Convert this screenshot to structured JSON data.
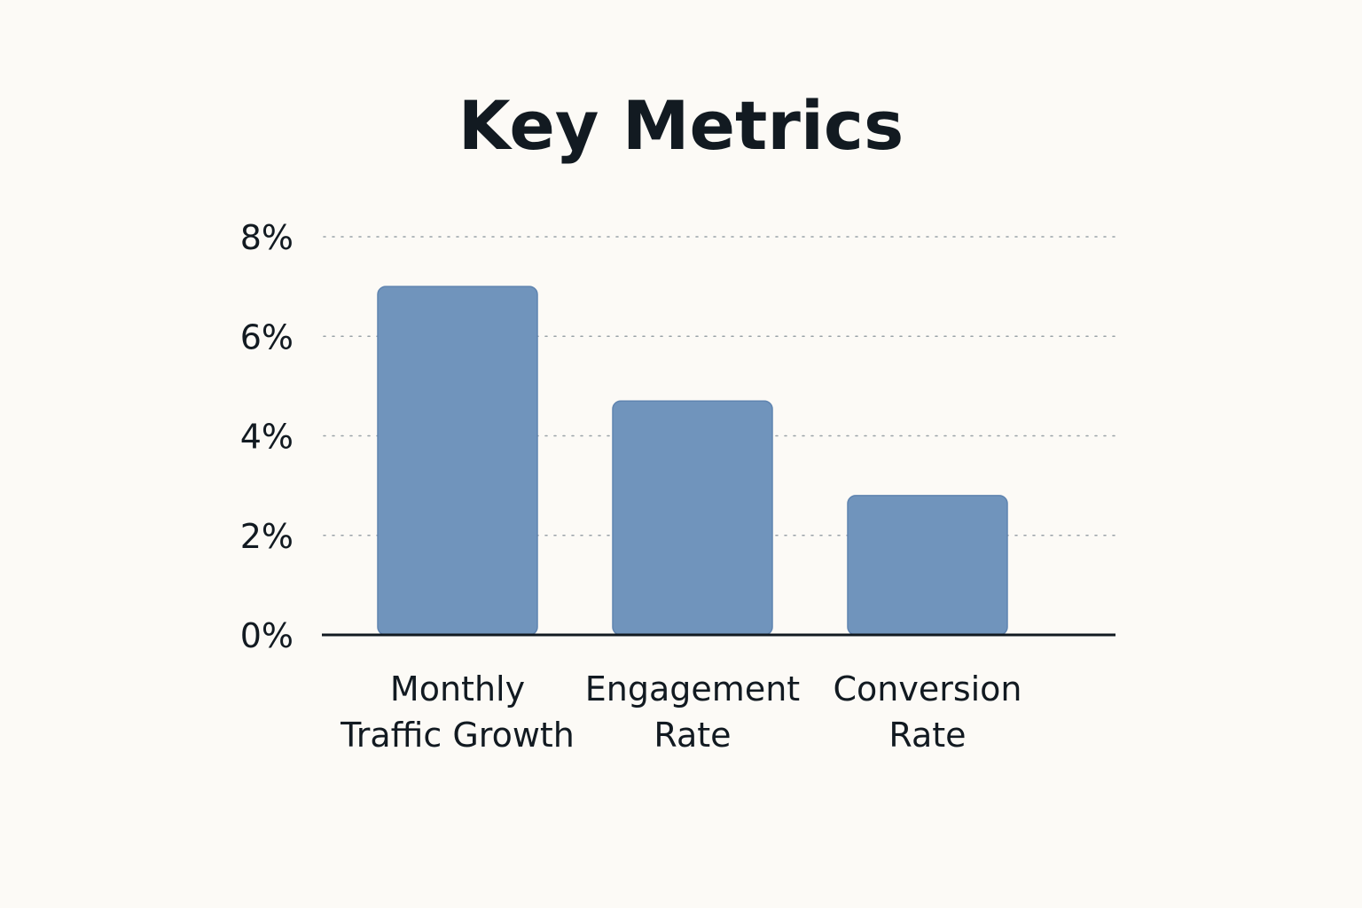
{
  "chart_data": {
    "type": "bar",
    "title": "Key Metrics",
    "categories": [
      [
        "Monthly",
        "Traffic Growth"
      ],
      [
        "Engagement",
        "Rate"
      ],
      [
        "Conversion",
        "Rate"
      ]
    ],
    "values": [
      7.0,
      4.7,
      2.8
    ],
    "ylim": [
      0,
      8
    ],
    "yticks": [
      0,
      2,
      4,
      6,
      8
    ],
    "ytick_labels": [
      "0%",
      "2%",
      "4%",
      "6%",
      "8%"
    ],
    "grid": true,
    "xlabel": "",
    "ylabel": "",
    "colors": {
      "bar": "#7094bc",
      "bar_edge": "#5f84b0",
      "grid": "#9aa3a8",
      "axis": "#121a21"
    }
  }
}
